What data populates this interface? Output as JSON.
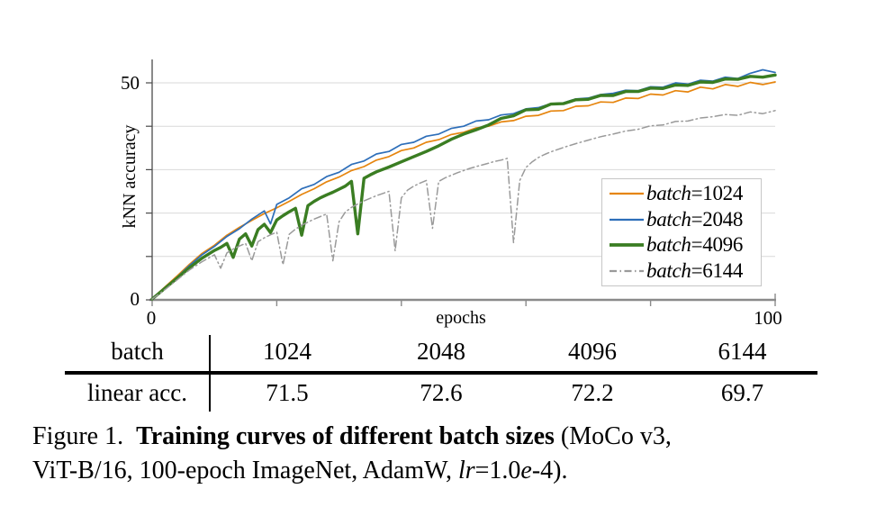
{
  "chart_data": {
    "type": "line",
    "title": "",
    "xlabel": "epochs",
    "ylabel": "kNN accuracy",
    "xlim": [
      0,
      100
    ],
    "ylim": [
      0,
      55
    ],
    "xticks": [
      0,
      20,
      40,
      60,
      80,
      100
    ],
    "yticks": [
      0,
      10,
      20,
      30,
      40,
      50
    ],
    "tick_labels": {
      "y0": "0",
      "y50": "50",
      "x0": "0",
      "x100": "100"
    },
    "grid": "horizontal",
    "legend_position": "inside-right-middle",
    "series": [
      {
        "name": "batch=1024",
        "label_word": "batch",
        "label_rest": "=1024",
        "color": "#E6850E",
        "stroke_width": 1.7,
        "dash": "",
        "points": [
          [
            0,
            0.3
          ],
          [
            2,
            2.9
          ],
          [
            4,
            5.5
          ],
          [
            6,
            8.2
          ],
          [
            8,
            10.7
          ],
          [
            10,
            12.6
          ],
          [
            12,
            14.9
          ],
          [
            14,
            16.7
          ],
          [
            16,
            18.3
          ],
          [
            18,
            19.9
          ],
          [
            20,
            21.2
          ],
          [
            22,
            22.7
          ],
          [
            24,
            24.3
          ],
          [
            26,
            25.6
          ],
          [
            28,
            27.2
          ],
          [
            30,
            28.3
          ],
          [
            32,
            29.8
          ],
          [
            34,
            30.7
          ],
          [
            36,
            32.2
          ],
          [
            38,
            33.0
          ],
          [
            40,
            34.4
          ],
          [
            42,
            35.0
          ],
          [
            44,
            36.3
          ],
          [
            46,
            36.9
          ],
          [
            48,
            38.1
          ],
          [
            50,
            38.6
          ],
          [
            52,
            39.6
          ],
          [
            54,
            40.0
          ],
          [
            56,
            41.0
          ],
          [
            58,
            41.3
          ],
          [
            60,
            42.3
          ],
          [
            62,
            42.5
          ],
          [
            64,
            43.5
          ],
          [
            66,
            43.6
          ],
          [
            68,
            44.6
          ],
          [
            70,
            44.7
          ],
          [
            72,
            45.6
          ],
          [
            74,
            45.5
          ],
          [
            76,
            46.5
          ],
          [
            78,
            46.4
          ],
          [
            80,
            47.4
          ],
          [
            82,
            47.2
          ],
          [
            84,
            48.2
          ],
          [
            86,
            47.9
          ],
          [
            88,
            49.0
          ],
          [
            90,
            48.6
          ],
          [
            92,
            49.6
          ],
          [
            94,
            49.2
          ],
          [
            96,
            50.1
          ],
          [
            98,
            49.6
          ],
          [
            100,
            50.2
          ]
        ]
      },
      {
        "name": "batch=2048",
        "label_word": "batch",
        "label_rest": "=2048",
        "color": "#2D6EB9",
        "stroke_width": 1.7,
        "dash": "",
        "points": [
          [
            0,
            0.3
          ],
          [
            2,
            2.8
          ],
          [
            4,
            5.2
          ],
          [
            6,
            7.9
          ],
          [
            8,
            10.4
          ],
          [
            10,
            12.3
          ],
          [
            12,
            14.6
          ],
          [
            14,
            16.4
          ],
          [
            16,
            18.6
          ],
          [
            18,
            20.5
          ],
          [
            19,
            17.5
          ],
          [
            20,
            22.0
          ],
          [
            22,
            23.5
          ],
          [
            24,
            25.6
          ],
          [
            26,
            26.6
          ],
          [
            28,
            28.4
          ],
          [
            30,
            29.4
          ],
          [
            32,
            31.2
          ],
          [
            34,
            32.0
          ],
          [
            36,
            33.6
          ],
          [
            38,
            34.2
          ],
          [
            40,
            35.8
          ],
          [
            42,
            36.3
          ],
          [
            44,
            37.7
          ],
          [
            46,
            38.2
          ],
          [
            48,
            39.5
          ],
          [
            50,
            40.0
          ],
          [
            52,
            41.2
          ],
          [
            54,
            41.5
          ],
          [
            56,
            42.6
          ],
          [
            58,
            42.9
          ],
          [
            60,
            44.0
          ],
          [
            62,
            44.3
          ],
          [
            64,
            45.2
          ],
          [
            66,
            45.4
          ],
          [
            68,
            46.3
          ],
          [
            70,
            46.5
          ],
          [
            72,
            47.3
          ],
          [
            74,
            47.6
          ],
          [
            76,
            48.3
          ],
          [
            78,
            48.2
          ],
          [
            80,
            49.1
          ],
          [
            82,
            49.0
          ],
          [
            84,
            50.0
          ],
          [
            86,
            49.7
          ],
          [
            88,
            50.6
          ],
          [
            90,
            50.4
          ],
          [
            92,
            51.3
          ],
          [
            94,
            51.0
          ],
          [
            96,
            52.2
          ],
          [
            98,
            53.0
          ],
          [
            100,
            52.4
          ]
        ]
      },
      {
        "name": "batch=4096",
        "label_word": "batch",
        "label_rest": "=4096",
        "color": "#3A7D22",
        "stroke_width": 3.4,
        "dash": "",
        "points": [
          [
            0,
            0.2
          ],
          [
            2,
            2.6
          ],
          [
            4,
            5.0
          ],
          [
            6,
            7.4
          ],
          [
            8,
            9.6
          ],
          [
            10,
            11.4
          ],
          [
            11,
            12.1
          ],
          [
            12,
            13.0
          ],
          [
            13,
            9.8
          ],
          [
            14,
            14.0
          ],
          [
            15,
            15.2
          ],
          [
            16,
            12.4
          ],
          [
            17,
            16.2
          ],
          [
            18,
            17.4
          ],
          [
            19,
            15.5
          ],
          [
            20,
            18.4
          ],
          [
            21,
            19.4
          ],
          [
            22,
            20.3
          ],
          [
            23,
            21.1
          ],
          [
            24,
            14.9
          ],
          [
            25,
            21.7
          ],
          [
            26,
            22.7
          ],
          [
            27,
            23.5
          ],
          [
            28,
            24.2
          ],
          [
            29,
            24.8
          ],
          [
            30,
            25.5
          ],
          [
            31,
            26.2
          ],
          [
            32,
            27.3
          ],
          [
            33,
            15.2
          ],
          [
            34,
            28.0
          ],
          [
            35,
            28.8
          ],
          [
            36,
            29.5
          ],
          [
            38,
            30.6
          ],
          [
            40,
            31.8
          ],
          [
            42,
            33.0
          ],
          [
            44,
            34.2
          ],
          [
            46,
            35.5
          ],
          [
            48,
            37.0
          ],
          [
            50,
            38.2
          ],
          [
            52,
            39.2
          ],
          [
            54,
            40.3
          ],
          [
            56,
            41.8
          ],
          [
            58,
            42.4
          ],
          [
            60,
            43.8
          ],
          [
            62,
            43.9
          ],
          [
            64,
            45.1
          ],
          [
            66,
            45.2
          ],
          [
            68,
            46.1
          ],
          [
            70,
            46.2
          ],
          [
            72,
            47.1
          ],
          [
            74,
            47.1
          ],
          [
            76,
            48.0
          ],
          [
            78,
            48.0
          ],
          [
            80,
            48.8
          ],
          [
            82,
            48.7
          ],
          [
            84,
            49.5
          ],
          [
            86,
            49.4
          ],
          [
            88,
            50.2
          ],
          [
            90,
            50.1
          ],
          [
            92,
            50.9
          ],
          [
            94,
            50.8
          ],
          [
            96,
            51.5
          ],
          [
            98,
            51.3
          ],
          [
            100,
            51.8
          ]
        ]
      },
      {
        "name": "batch=6144",
        "label_word": "batch",
        "label_rest": "=6144",
        "color": "#9A9A9A",
        "stroke_width": 1.5,
        "dash": "8 3.5 1.5 3.5",
        "points": [
          [
            0,
            0.2
          ],
          [
            2,
            2.3
          ],
          [
            4,
            4.6
          ],
          [
            6,
            6.9
          ],
          [
            8,
            8.8
          ],
          [
            10,
            10.4
          ],
          [
            11,
            7.3
          ],
          [
            12,
            10.8
          ],
          [
            13,
            11.7
          ],
          [
            14,
            12.4
          ],
          [
            15,
            13.0
          ],
          [
            16,
            9.0
          ],
          [
            17,
            13.4
          ],
          [
            18,
            14.3
          ],
          [
            19,
            15.0
          ],
          [
            20,
            15.6
          ],
          [
            21,
            8.1
          ],
          [
            22,
            15.1
          ],
          [
            23,
            16.3
          ],
          [
            24,
            17.2
          ],
          [
            25,
            17.9
          ],
          [
            26,
            18.6
          ],
          [
            27,
            19.2
          ],
          [
            28,
            19.8
          ],
          [
            29,
            9.0
          ],
          [
            30,
            18.0
          ],
          [
            31,
            20.2
          ],
          [
            32,
            21.3
          ],
          [
            33,
            22.1
          ],
          [
            34,
            22.8
          ],
          [
            35,
            23.4
          ],
          [
            36,
            24.0
          ],
          [
            37,
            24.5
          ],
          [
            38,
            25.0
          ],
          [
            39,
            11.3
          ],
          [
            40,
            23.5
          ],
          [
            41,
            25.3
          ],
          [
            42,
            26.2
          ],
          [
            43,
            26.9
          ],
          [
            44,
            27.5
          ],
          [
            45,
            16.5
          ],
          [
            46,
            27.3
          ],
          [
            47,
            28.1
          ],
          [
            48,
            28.7
          ],
          [
            49,
            29.3
          ],
          [
            50,
            29.8
          ],
          [
            51,
            30.3
          ],
          [
            52,
            30.7
          ],
          [
            53,
            31.1
          ],
          [
            54,
            31.5
          ],
          [
            55,
            31.9
          ],
          [
            56,
            32.2
          ],
          [
            57,
            32.6
          ],
          [
            58,
            13.2
          ],
          [
            59,
            27.5
          ],
          [
            60,
            30.5
          ],
          [
            61,
            31.8
          ],
          [
            62,
            32.8
          ],
          [
            63,
            33.5
          ],
          [
            64,
            34.1
          ],
          [
            66,
            35.1
          ],
          [
            68,
            36.0
          ],
          [
            70,
            36.8
          ],
          [
            72,
            37.6
          ],
          [
            74,
            38.2
          ],
          [
            76,
            38.9
          ],
          [
            78,
            39.3
          ],
          [
            80,
            40.1
          ],
          [
            82,
            40.3
          ],
          [
            84,
            41.1
          ],
          [
            86,
            41.2
          ],
          [
            88,
            41.9
          ],
          [
            90,
            42.2
          ],
          [
            92,
            42.7
          ],
          [
            94,
            42.5
          ],
          [
            96,
            43.3
          ],
          [
            98,
            42.9
          ],
          [
            100,
            43.6
          ]
        ]
      }
    ]
  },
  "table": {
    "header_label": "batch",
    "columns": [
      "1024",
      "2048",
      "4096",
      "6144"
    ],
    "row_label": "linear acc.",
    "values": [
      "71.5",
      "72.6",
      "72.2",
      "69.7"
    ]
  },
  "figure": {
    "caption": {
      "lines": [
        [
          {
            "t": "Figure 1.  ",
            "s": "r"
          },
          {
            "t": "Training curves of different batch sizes",
            "s": "b"
          },
          {
            "t": " (MoCo v3,",
            "s": "r"
          }
        ],
        [
          {
            "t": "ViT-B/16, 100-epoch ImageNet, AdamW, ",
            "s": "r"
          },
          {
            "t": "lr",
            "s": "i"
          },
          {
            "t": "=1.0",
            "s": "r"
          },
          {
            "t": "e",
            "s": "i"
          },
          {
            "t": "-4).",
            "s": "r"
          }
        ]
      ]
    }
  }
}
